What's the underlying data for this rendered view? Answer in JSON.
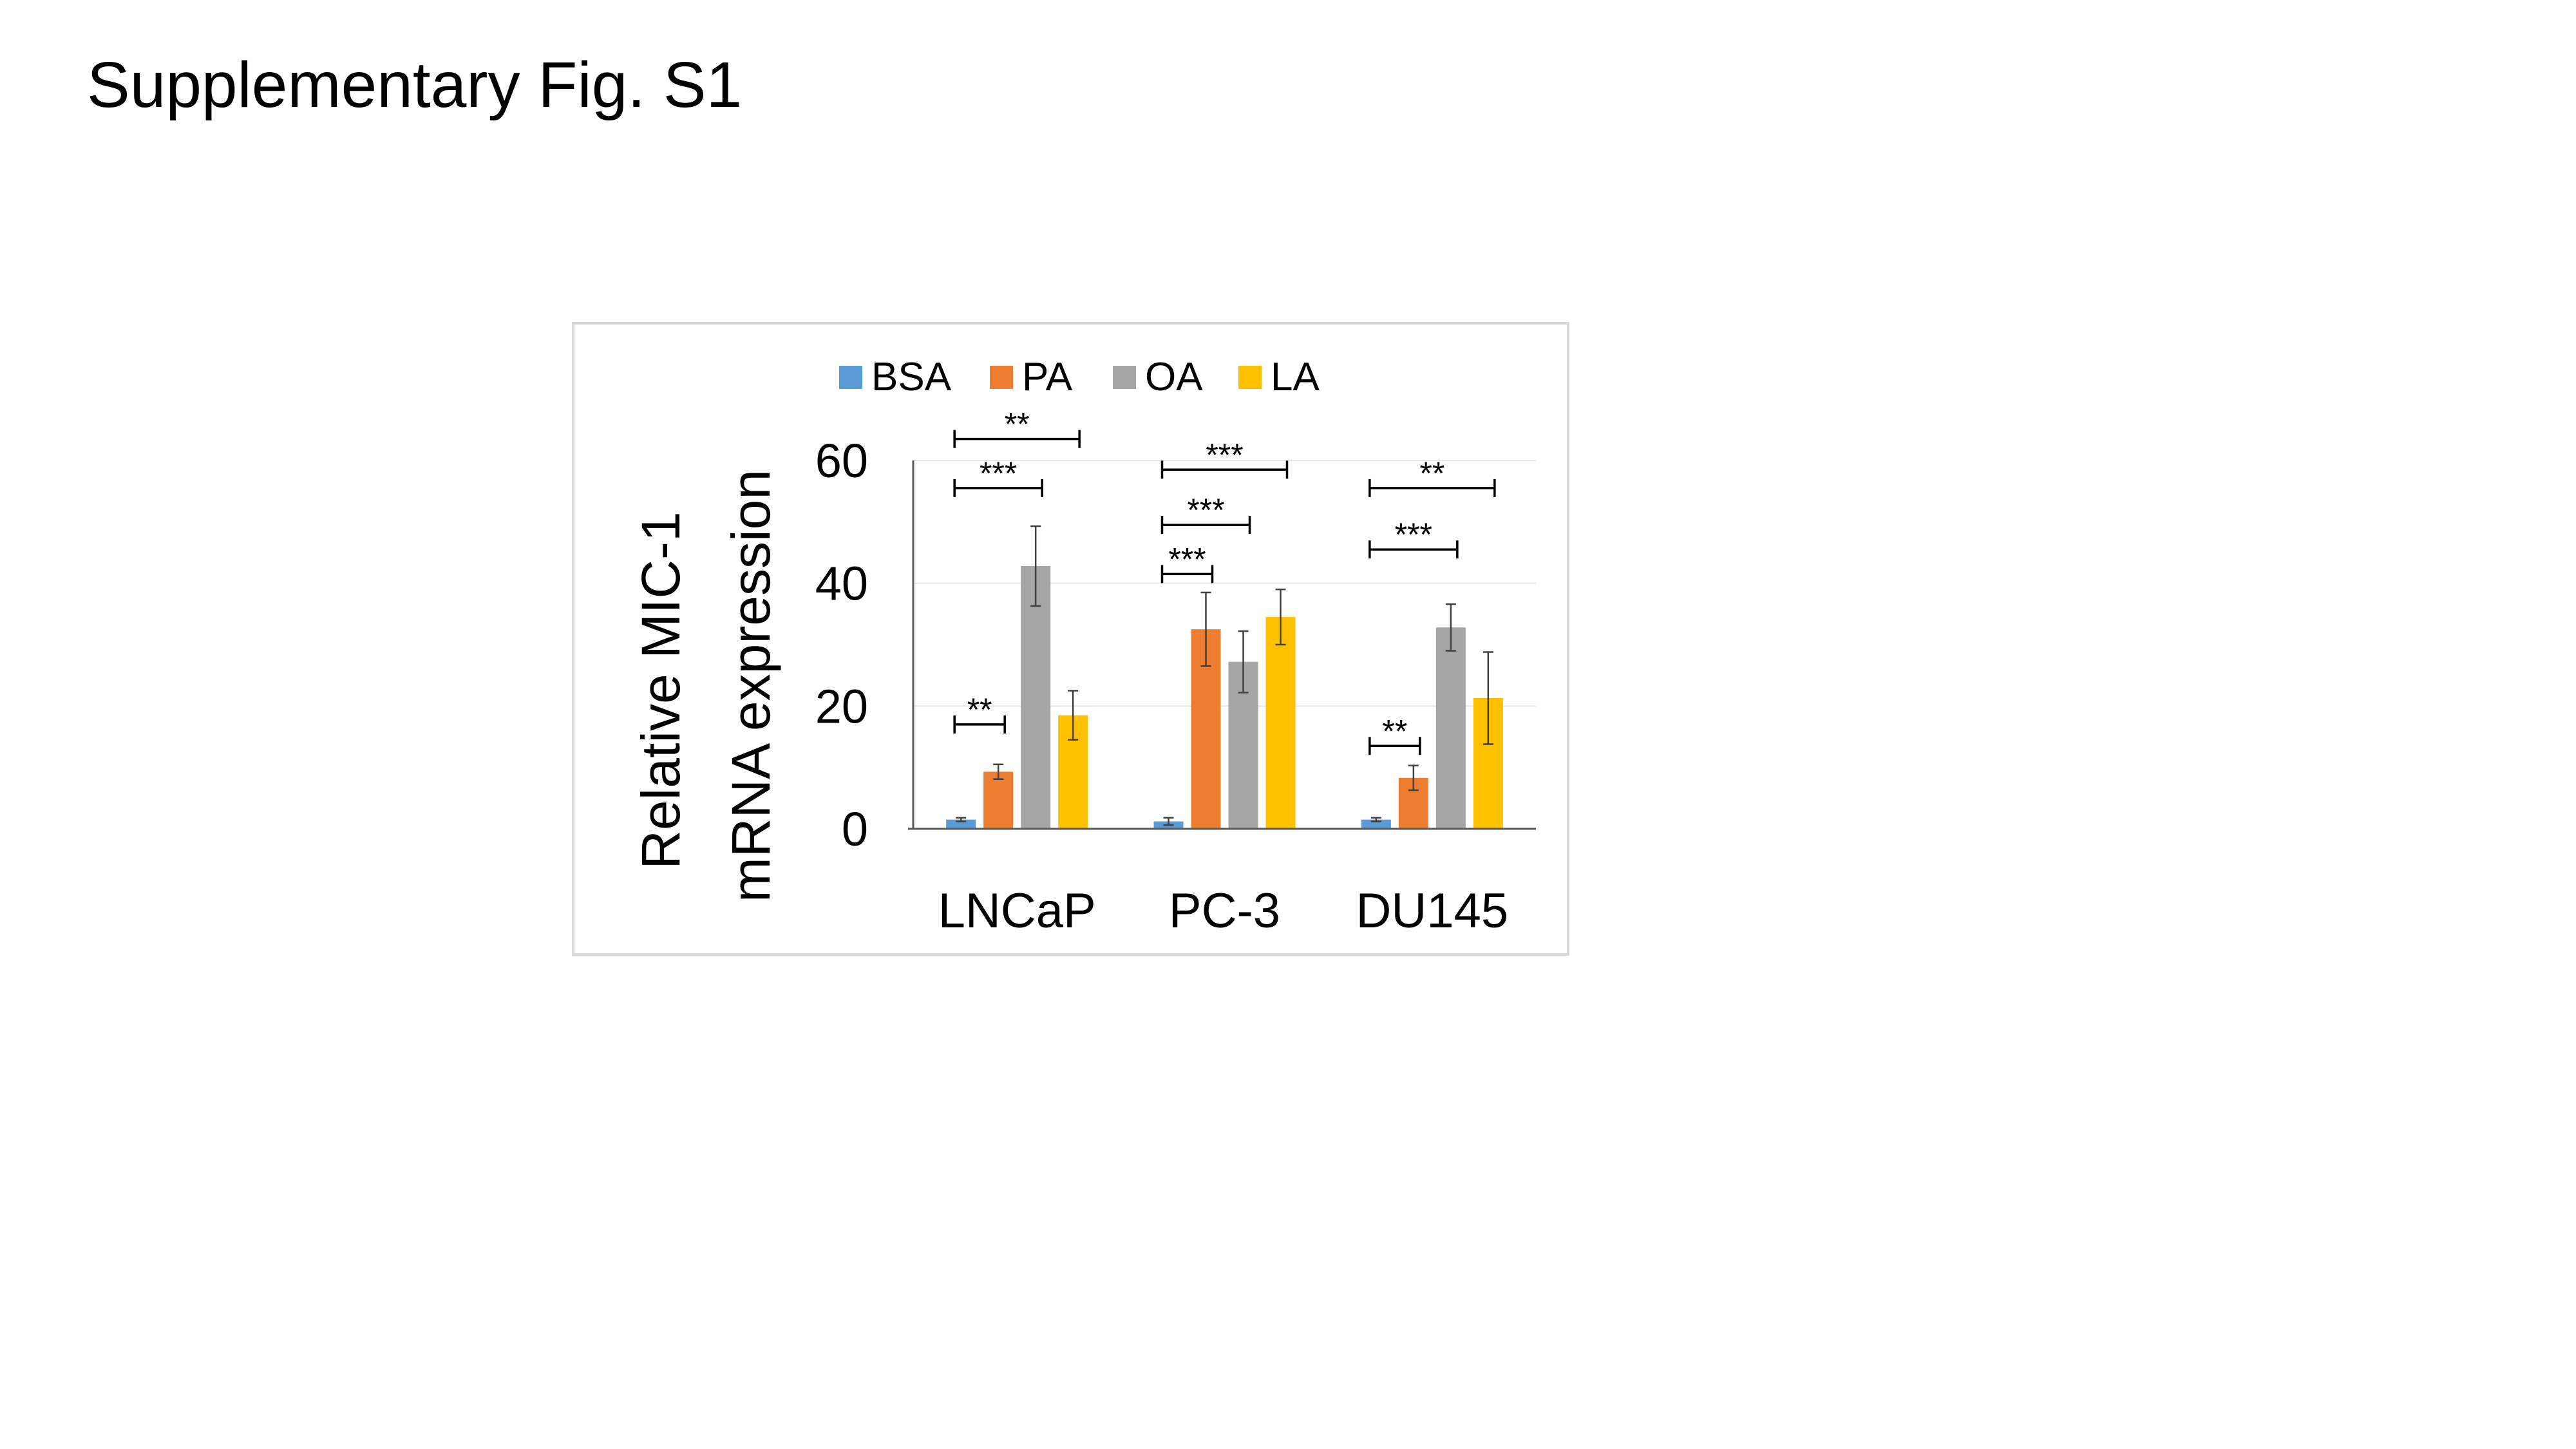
{
  "page": {
    "title": "Supplementary Fig. S1"
  },
  "chart_data": {
    "type": "bar",
    "ylabel_lines": [
      "Relative MIC-1",
      "mRNA expression"
    ],
    "xlabel": "",
    "ylim": [
      0,
      60
    ],
    "yticks": [
      0,
      20,
      40,
      60
    ],
    "grid": true,
    "legend_position": "top",
    "categories": [
      "LNCaP",
      "PC-3",
      "DU145"
    ],
    "series": [
      {
        "name": "BSA",
        "color": "#5B9BD5",
        "values": [
          1.5,
          1.2,
          1.5
        ],
        "errors": [
          0.3,
          0.6,
          0.3
        ]
      },
      {
        "name": "PA",
        "color": "#ED7D31",
        "values": [
          9.3,
          32.5,
          8.3
        ],
        "errors": [
          1.2,
          6.0,
          2.0
        ]
      },
      {
        "name": "OA",
        "color": "#A5A5A5",
        "values": [
          42.8,
          27.2,
          32.8
        ],
        "errors": [
          6.5,
          5.0,
          3.8
        ]
      },
      {
        "name": "LA",
        "color": "#FFC000",
        "values": [
          18.5,
          34.5,
          21.3
        ],
        "errors": [
          4.0,
          4.5,
          7.5
        ]
      }
    ],
    "significance": [
      {
        "category": 0,
        "from": 0,
        "to": 1,
        "level": 17,
        "label": "**"
      },
      {
        "category": 0,
        "from": 0,
        "to": 2,
        "level": 55.5,
        "label": "***"
      },
      {
        "category": 0,
        "from": 0,
        "to": 3,
        "level": 63.5,
        "label": "**"
      },
      {
        "category": 1,
        "from": 0,
        "to": 1,
        "level": 41.5,
        "label": "***"
      },
      {
        "category": 1,
        "from": 0,
        "to": 2,
        "level": 49.5,
        "label": "***"
      },
      {
        "category": 1,
        "from": 0,
        "to": 3,
        "level": 58.5,
        "label": "***"
      },
      {
        "category": 2,
        "from": 0,
        "to": 1,
        "level": 13.5,
        "label": "**"
      },
      {
        "category": 2,
        "from": 0,
        "to": 2,
        "level": 45.5,
        "label": "***"
      },
      {
        "category": 2,
        "from": 0,
        "to": 3,
        "level": 55.5,
        "label": "**"
      }
    ]
  }
}
